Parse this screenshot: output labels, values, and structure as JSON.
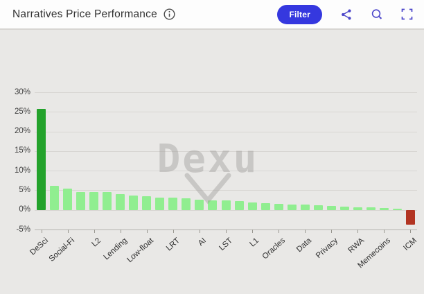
{
  "header": {
    "title": "Narratives Price Performance",
    "filter_label": "Filter",
    "icons": [
      "info-icon",
      "share-icon",
      "zoom-search-icon",
      "fullscreen-icon"
    ]
  },
  "watermark": {
    "text": "Dexu"
  },
  "colors": {
    "accent_blue": "#3538df",
    "icon_indigo": "#4a44c9",
    "bar_strong_green": "#23a22b",
    "bar_light_green": "#90ee90",
    "bar_red": "#b23422",
    "grid": "#d8d6d3",
    "page_bg": "#e9e8e6",
    "header_bg": "#fdfdfd"
  },
  "chart_data": {
    "type": "bar",
    "title": "Narratives Price Performance",
    "categories": [
      "DeSci",
      "",
      "Social-Fi",
      "",
      "L2",
      "",
      "Lending",
      "",
      "Low-float",
      "",
      "LRT",
      "",
      "AI",
      "",
      "LST",
      "",
      "L1",
      "",
      "Oracles",
      "",
      "Data",
      "",
      "Privacy",
      "",
      "RWA",
      "",
      "Memecoins",
      "",
      "ICM"
    ],
    "values": [
      25.7,
      6.1,
      5.5,
      4.6,
      4.6,
      4.6,
      4.0,
      3.6,
      3.4,
      3.1,
      3.2,
      3.0,
      2.6,
      2.5,
      2.4,
      2.3,
      1.9,
      1.7,
      1.5,
      1.3,
      1.3,
      1.1,
      1.0,
      0.9,
      0.7,
      0.6,
      0.4,
      0.3,
      -3.7
    ],
    "yticks": [
      "30%",
      "25%",
      "20%",
      "15%",
      "10%",
      "5%",
      "0%",
      "-5%"
    ],
    "ylim": [
      -5,
      30
    ],
    "xlabel": "",
    "ylabel": "",
    "grid": true,
    "legend": "none"
  }
}
